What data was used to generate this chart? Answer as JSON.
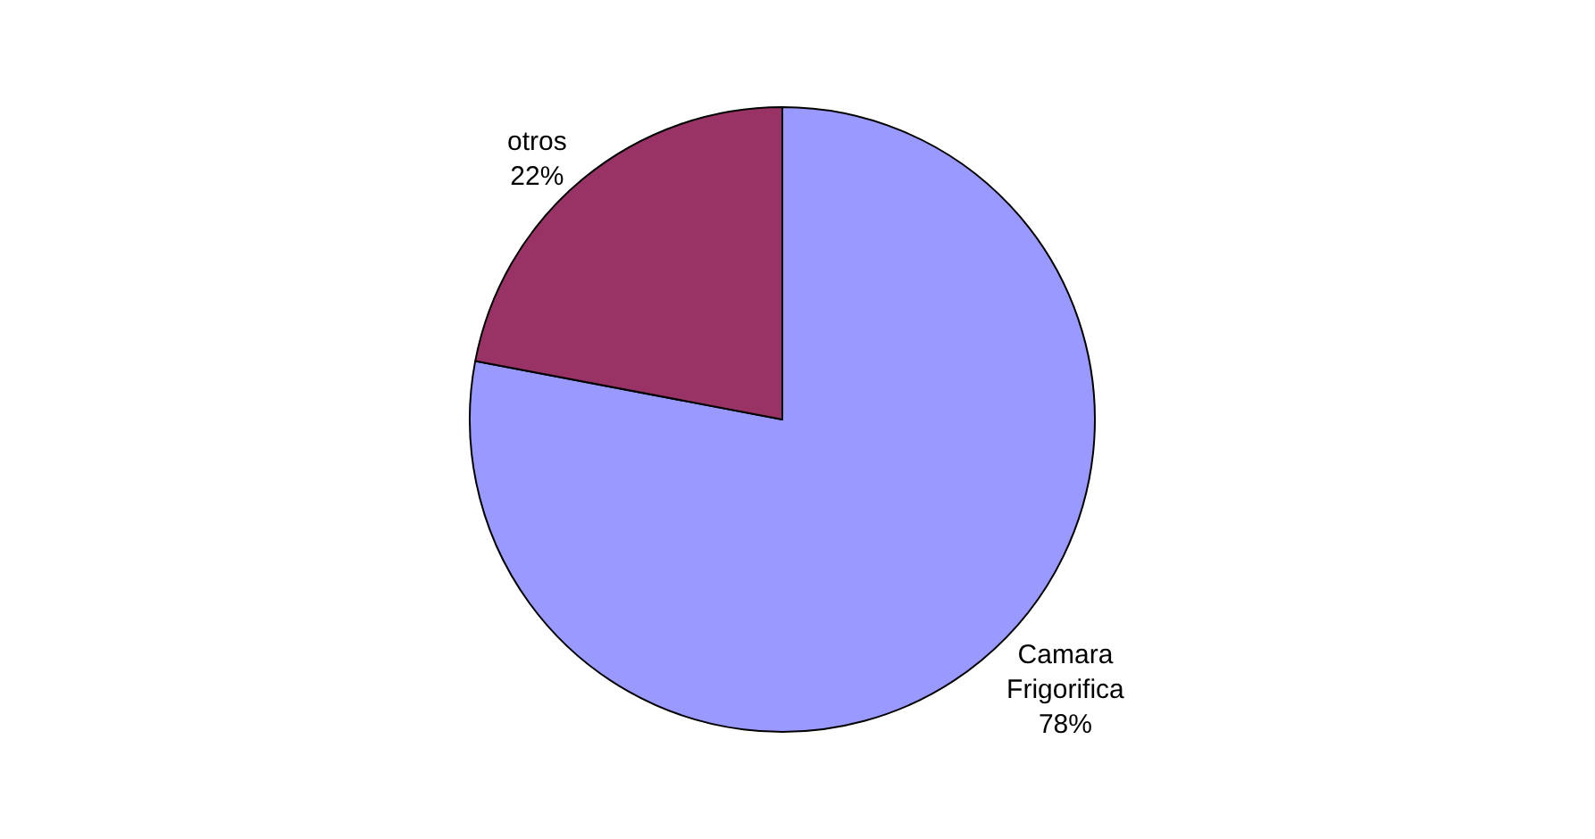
{
  "chart_data": {
    "type": "pie",
    "categories": [
      "Camara Frigorifica",
      "otros"
    ],
    "values": [
      78,
      22
    ],
    "value_labels": [
      "78%",
      "22%"
    ],
    "colors": [
      "#9999ff",
      "#993366"
    ],
    "legend": false
  }
}
